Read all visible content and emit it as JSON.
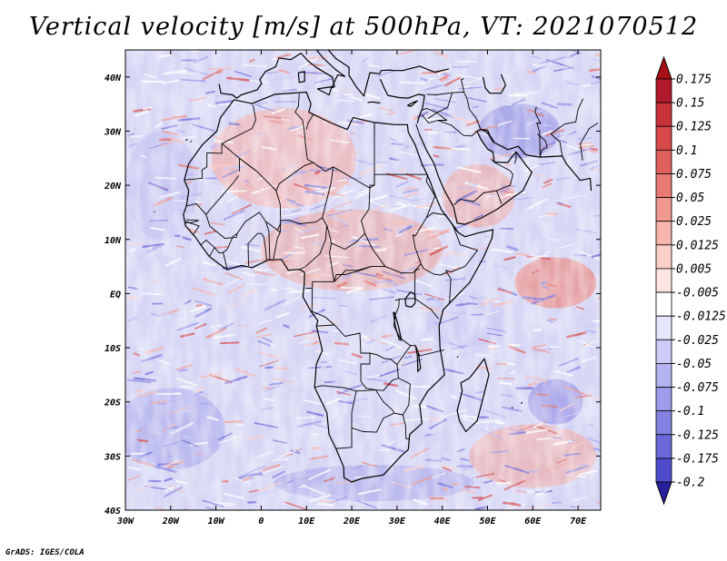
{
  "title": "Vertical velocity [m/s] at 500hPa, VT: 2021070512",
  "credit": "GrADS: IGES/COLA",
  "map": {
    "lon_range": [
      -30,
      75
    ],
    "lat_range": [
      -40,
      45
    ],
    "lon_ticks": [
      {
        "value": -30,
        "label": "30W"
      },
      {
        "value": -20,
        "label": "20W"
      },
      {
        "value": -10,
        "label": "10W"
      },
      {
        "value": 0,
        "label": "0"
      },
      {
        "value": 10,
        "label": "10E"
      },
      {
        "value": 20,
        "label": "20E"
      },
      {
        "value": 30,
        "label": "30E"
      },
      {
        "value": 40,
        "label": "40E"
      },
      {
        "value": 50,
        "label": "50E"
      },
      {
        "value": 60,
        "label": "60E"
      },
      {
        "value": 70,
        "label": "70E"
      }
    ],
    "lat_ticks": [
      {
        "value": 40,
        "label": "40N"
      },
      {
        "value": 30,
        "label": "30N"
      },
      {
        "value": 20,
        "label": "20N"
      },
      {
        "value": 10,
        "label": "10N"
      },
      {
        "value": 0,
        "label": "EQ"
      },
      {
        "value": -10,
        "label": "10S"
      },
      {
        "value": -20,
        "label": "20S"
      },
      {
        "value": -30,
        "label": "30S"
      },
      {
        "value": -40,
        "label": "40S"
      }
    ]
  },
  "colorbar": {
    "levels": [
      {
        "label": "0.175",
        "color": "#b2182b"
      },
      {
        "label": "0.15",
        "color": "#c8333a"
      },
      {
        "label": "0.125",
        "color": "#d6484a"
      },
      {
        "label": "0.1",
        "color": "#e0605d"
      },
      {
        "label": "0.075",
        "color": "#e97b76"
      },
      {
        "label": "0.05",
        "color": "#f19891"
      },
      {
        "label": "0.025",
        "color": "#f7b5ad"
      },
      {
        "label": "0.0125",
        "color": "#fbd0ca"
      },
      {
        "label": "0.005",
        "color": "#fde6e2"
      },
      {
        "label": "-0.005",
        "color": "#ffffff"
      },
      {
        "label": "-0.0125",
        "color": "#e5e6fb"
      },
      {
        "label": "-0.025",
        "color": "#cccdf6"
      },
      {
        "label": "-0.05",
        "color": "#b3b4f0"
      },
      {
        "label": "-0.075",
        "color": "#9c9ceb"
      },
      {
        "label": "-0.1",
        "color": "#8282e3"
      },
      {
        "label": "-0.125",
        "color": "#6a69d9"
      },
      {
        "label": "-0.175",
        "color": "#4f4ccc"
      },
      {
        "label": "-0.2",
        "color": "#3530bb"
      }
    ],
    "top_color": "#a50f15",
    "bottom_color": "#26209e"
  },
  "colors": {
    "frame": "#000000",
    "coast": "#000000",
    "background": "#ffffff"
  }
}
